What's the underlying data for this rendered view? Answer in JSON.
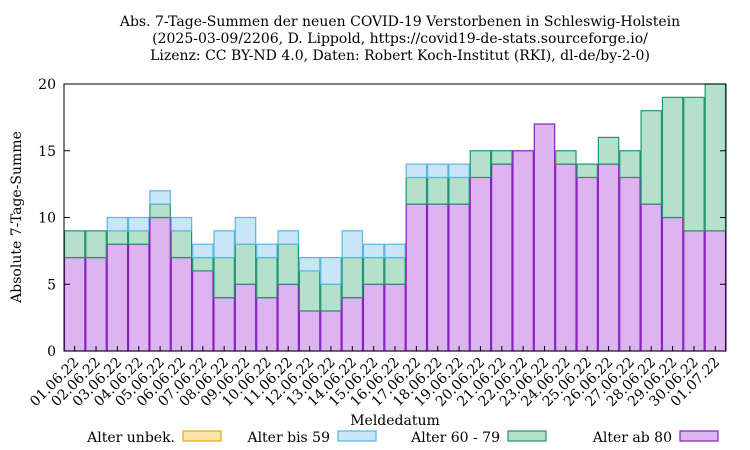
{
  "chart_data": {
    "type": "bar",
    "stacked": true,
    "title": "Abs. 7-Tage-Summen der neuen COVID-19 Verstorbenen in Schleswig-Holstein",
    "subtitle_1": "(2025-03-09/2206, D. Lippold, https://covid19-de-stats.sourceforge.io/",
    "subtitle_2": "Lizenz: CC BY-ND 4.0, Daten: Robert Koch-Institut (RKI), dl-de/by-2-0)",
    "xlabel": "Meldedatum",
    "ylabel": "Absolute 7-Tage-Summe",
    "ylim": [
      0,
      20
    ],
    "yticks": [
      "0",
      "5",
      "10",
      "15",
      "20"
    ],
    "categories": [
      "01.06.22",
      "02.06.22",
      "03.06.22",
      "04.06.22",
      "05.06.22",
      "06.06.22",
      "07.06.22",
      "08.06.22",
      "09.06.22",
      "10.06.22",
      "11.06.22",
      "12.06.22",
      "13.06.22",
      "14.06.22",
      "15.06.22",
      "16.06.22",
      "17.06.22",
      "18.06.22",
      "19.06.22",
      "20.06.22",
      "21.06.22",
      "22.06.22",
      "23.06.22",
      "24.06.22",
      "25.06.22",
      "26.06.22",
      "27.06.22",
      "28.06.22",
      "29.06.22",
      "30.06.22",
      "01.07.22"
    ],
    "series": [
      {
        "name": "Alter ab 80",
        "color": "#dcb4f0",
        "edge": "#8a1fbf",
        "values": [
          7,
          7,
          8,
          8,
          10,
          7,
          6,
          4,
          5,
          4,
          5,
          3,
          3,
          4,
          5,
          5,
          11,
          11,
          11,
          13,
          14,
          15,
          17,
          14,
          13,
          14,
          13,
          11,
          10,
          9,
          9
        ]
      },
      {
        "name": "Alter 60 - 79",
        "color": "#b4e0cc",
        "edge": "#1e9670",
        "values": [
          2,
          2,
          1,
          1,
          1,
          2,
          1,
          3,
          3,
          3,
          3,
          3,
          2,
          3,
          2,
          2,
          2,
          2,
          2,
          2,
          1,
          0,
          0,
          1,
          1,
          2,
          2,
          7,
          9,
          10,
          11
        ]
      },
      {
        "name": "Alter bis 59",
        "color": "#c8e6f7",
        "edge": "#5ab4e6",
        "values": [
          0,
          0,
          1,
          1,
          1,
          1,
          1,
          2,
          2,
          1,
          1,
          1,
          2,
          2,
          1,
          1,
          1,
          1,
          1,
          0,
          0,
          0,
          0,
          0,
          0,
          0,
          0,
          0,
          0,
          0,
          0
        ]
      },
      {
        "name": "Alter unbek.",
        "color": "#fde3a7",
        "edge": "#e6a817",
        "values": [
          0,
          0,
          0,
          0,
          0,
          0,
          0,
          0,
          0,
          0,
          0,
          0,
          0,
          0,
          0,
          0,
          0,
          0,
          0,
          0,
          0,
          0,
          0,
          0,
          0,
          0,
          0,
          0,
          0,
          0,
          0
        ]
      }
    ],
    "legend_order": [
      "Alter unbek.",
      "Alter bis 59",
      "Alter 60 - 79",
      "Alter ab 80"
    ],
    "legend_placement": "bottom",
    "grid": false
  }
}
